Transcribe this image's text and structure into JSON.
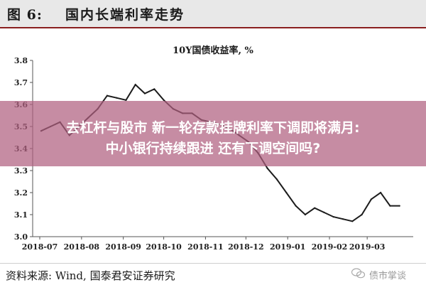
{
  "figure": {
    "label": "图 6:",
    "title": "国内长端利率走势"
  },
  "overlay": {
    "line1": "去杠杆与股市 新一轮存款挂牌利率下调即将满月:",
    "line2": "中小银行持续跟进 还有下调空间吗?"
  },
  "footer": {
    "source": "资料来源:  Wind, 国泰君安证券研究",
    "brand": "债市掌谈"
  },
  "colors": {
    "line": "#1c1c1c",
    "overlay": "#b06080",
    "header_rule": "#8a1f1f"
  },
  "chart_data": {
    "type": "line",
    "title": "10Y国债收益率, %",
    "xlabel": "",
    "ylabel": "",
    "ylim": [
      3.0,
      3.8
    ],
    "yticks": [
      "3.0",
      "3.1",
      "3.2",
      "3.3",
      "3.4",
      "3.5",
      "3.6",
      "3.7",
      "3.8"
    ],
    "xticks": [
      "2018-07",
      "2018-08",
      "2018-09",
      "2018-10",
      "2018-11",
      "2018-12",
      "2019-01",
      "2019-02",
      "2019-03"
    ],
    "grid": false,
    "legend": "none",
    "x": [
      "2018-07-02",
      "2018-07-09",
      "2018-07-16",
      "2018-07-23",
      "2018-07-30",
      "2018-08-06",
      "2018-08-13",
      "2018-08-20",
      "2018-08-27",
      "2018-09-03",
      "2018-09-10",
      "2018-09-17",
      "2018-09-24",
      "2018-10-01",
      "2018-10-08",
      "2018-10-15",
      "2018-10-22",
      "2018-10-29",
      "2018-11-05",
      "2018-11-12",
      "2018-11-19",
      "2018-11-26",
      "2018-12-03",
      "2018-12-10",
      "2018-12-17",
      "2018-12-24",
      "2018-12-31",
      "2019-01-07",
      "2019-01-14",
      "2019-01-21",
      "2019-01-28",
      "2019-02-04",
      "2019-02-11",
      "2019-02-18",
      "2019-02-25",
      "2019-03-04",
      "2019-03-11",
      "2019-03-18",
      "2019-03-25"
    ],
    "series": [
      {
        "values": [
          3.48,
          3.5,
          3.52,
          3.46,
          3.5,
          3.54,
          3.58,
          3.64,
          3.63,
          3.62,
          3.69,
          3.65,
          3.67,
          3.62,
          3.58,
          3.56,
          3.56,
          3.53,
          3.52,
          3.51,
          3.49,
          3.46,
          3.43,
          3.38,
          3.31,
          3.26,
          3.2,
          3.14,
          3.1,
          3.13,
          3.11,
          3.09,
          3.08,
          3.07,
          3.1,
          3.17,
          3.2,
          3.14,
          3.14
        ]
      }
    ]
  }
}
